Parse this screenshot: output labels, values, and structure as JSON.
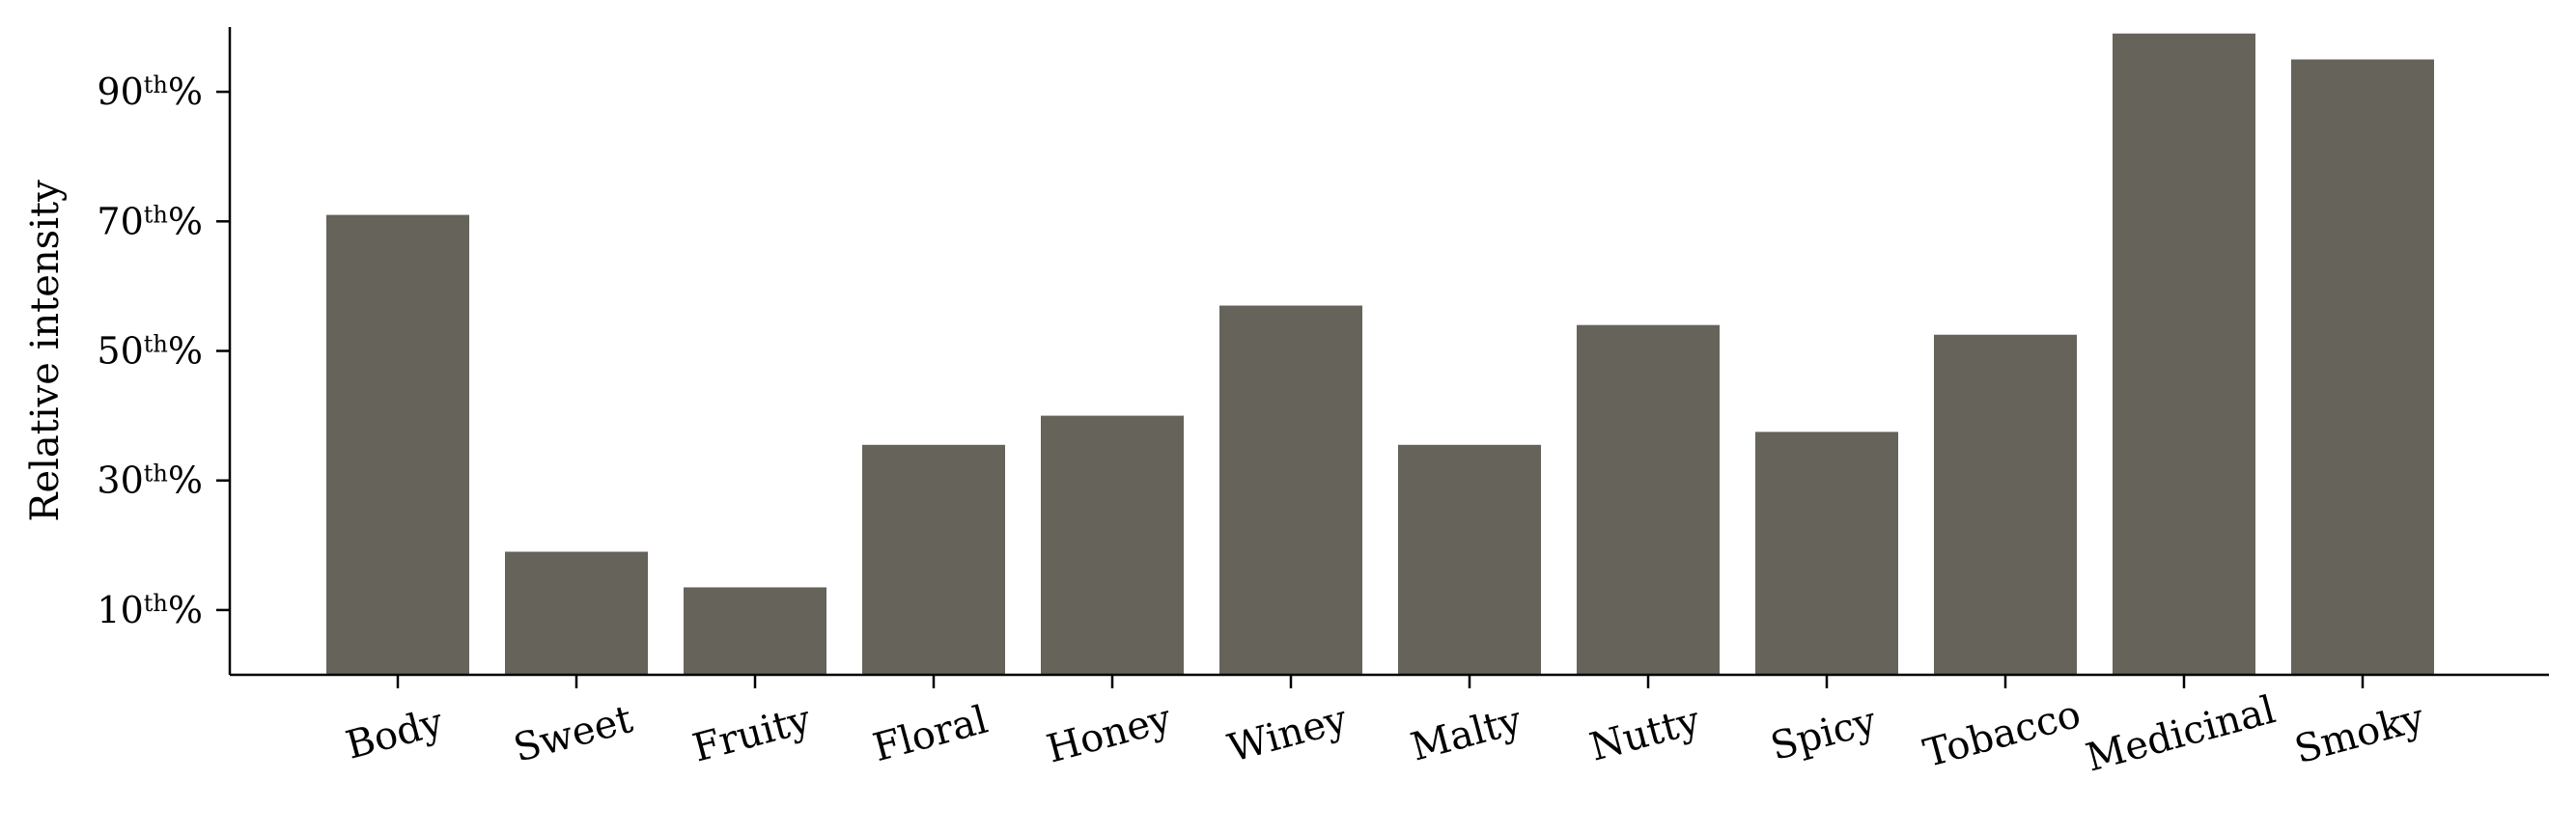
{
  "chart_data": {
    "type": "bar",
    "categories": [
      "Body",
      "Sweet",
      "Fruity",
      "Floral",
      "Honey",
      "Winey",
      "Malty",
      "Nutty",
      "Spicy",
      "Tobacco",
      "Medicinal",
      "Smoky"
    ],
    "values": [
      71,
      19,
      13.5,
      35.5,
      40,
      57,
      35.5,
      54,
      37.5,
      52.5,
      99,
      95
    ],
    "bar_color": "#65635a",
    "ylabel": "Relative intensity",
    "xlabel": "",
    "title": "",
    "ylim": [
      0,
      100
    ],
    "y_ticks": [
      {
        "value": 10,
        "num": "10",
        "sup": "th",
        "suffix": "%"
      },
      {
        "value": 30,
        "num": "30",
        "sup": "th",
        "suffix": "%"
      },
      {
        "value": 50,
        "num": "50",
        "sup": "th",
        "suffix": "%"
      },
      {
        "value": 70,
        "num": "70",
        "sup": "th",
        "suffix": "%"
      },
      {
        "value": 90,
        "num": "90",
        "sup": "th",
        "suffix": "%"
      }
    ],
    "x_tick_rotation_deg": -15,
    "grid": false,
    "legend": "none"
  }
}
